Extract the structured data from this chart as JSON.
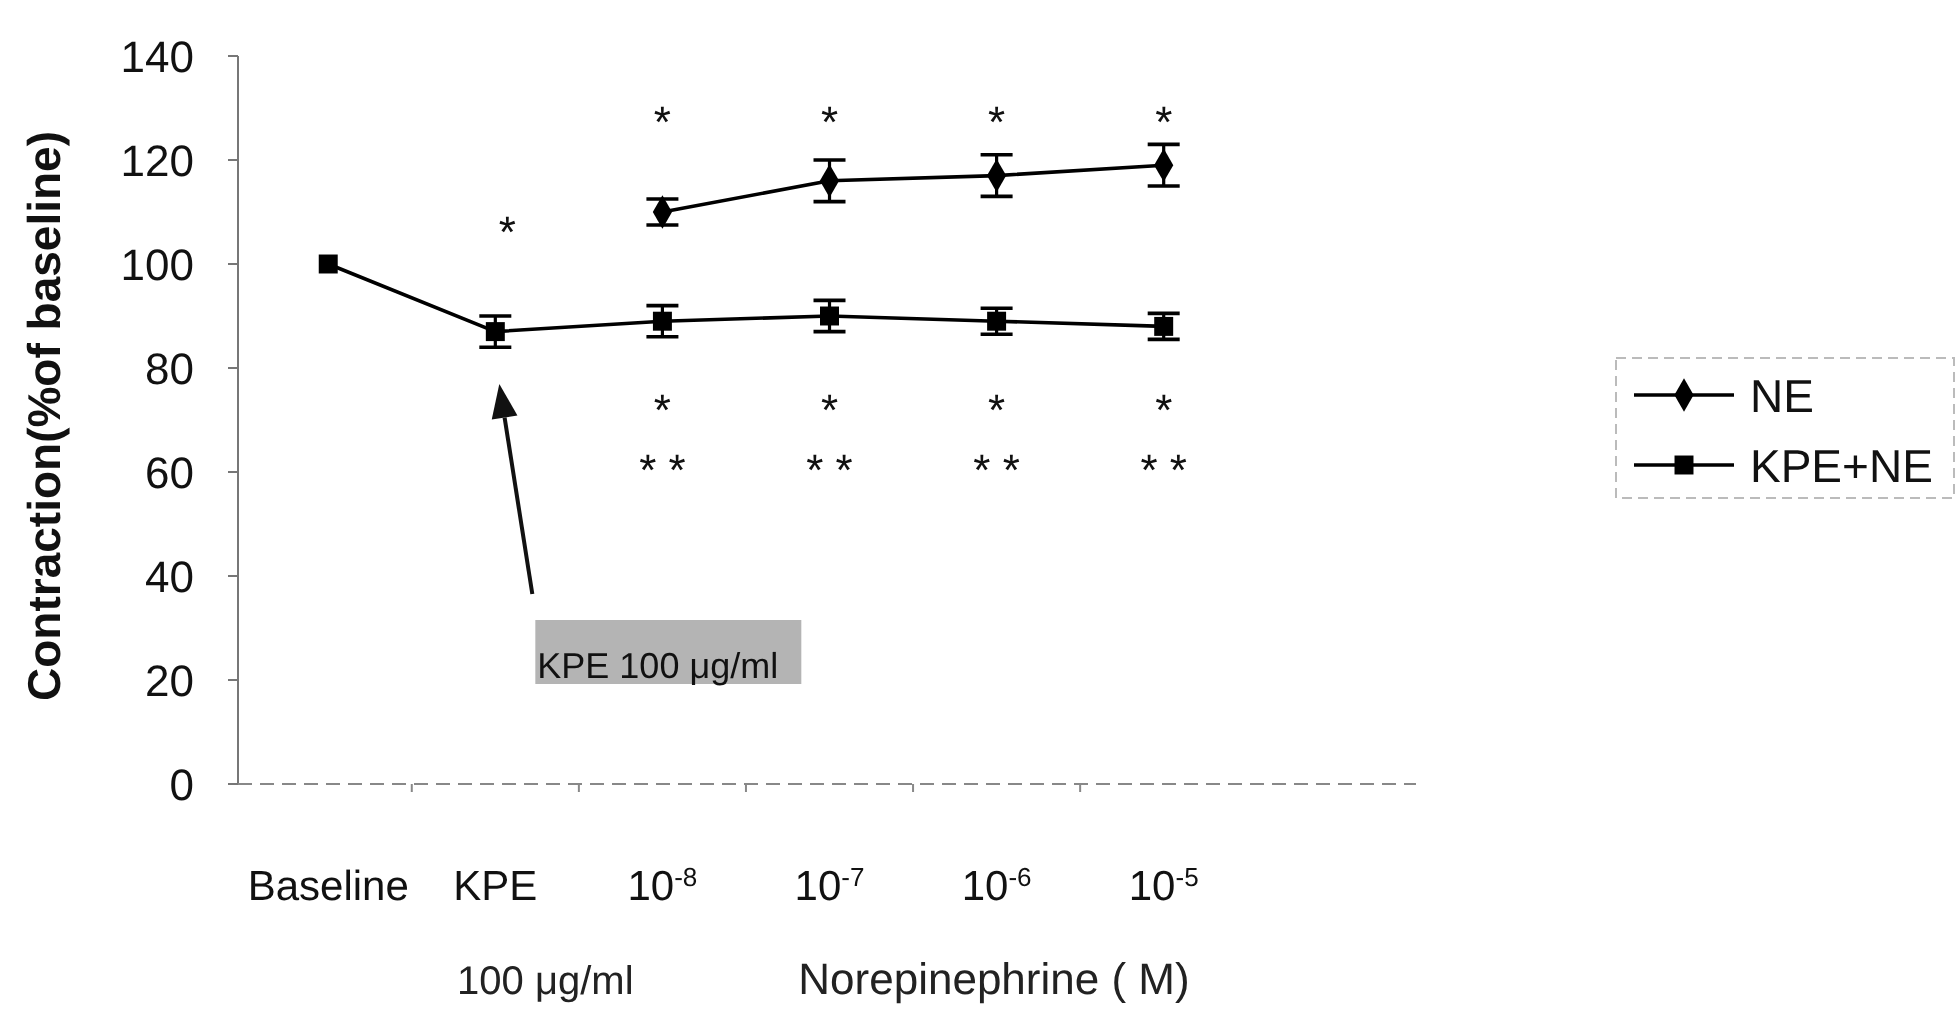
{
  "chart_data": {
    "type": "line",
    "categories": [
      "Baseline",
      "KPE",
      "10$^{-8}$",
      "10$^{-7}$",
      "10$^{-6}$",
      "10$^{-5}$"
    ],
    "series": [
      {
        "name": "NE",
        "color": "#000000",
        "marker": "diamond",
        "values": [
          null,
          null,
          110,
          116,
          117,
          119
        ],
        "errors": [
          null,
          null,
          2.5,
          4,
          4,
          4
        ]
      },
      {
        "name": "KPE+NE",
        "color": "#000000",
        "marker": "square",
        "values": [
          100,
          87,
          89,
          90,
          89,
          88
        ],
        "errors": [
          null,
          3,
          3,
          3,
          2.5,
          2.5
        ]
      }
    ],
    "xlabel": "Norepinephrine ( M)",
    "ylabel": "Contraction(%of baseline)",
    "ylim": [
      0,
      140
    ],
    "yticks": [
      0,
      20,
      40,
      60,
      80,
      100,
      120,
      140
    ],
    "legend": "right",
    "annotations": [
      "*",
      "*",
      "*",
      "*",
      "*",
      "*",
      "*",
      "*",
      "*",
      "* *",
      "* *",
      "* *",
      "* *",
      "KPE 100 μg/ml",
      "100 μg/ml"
    ]
  }
}
